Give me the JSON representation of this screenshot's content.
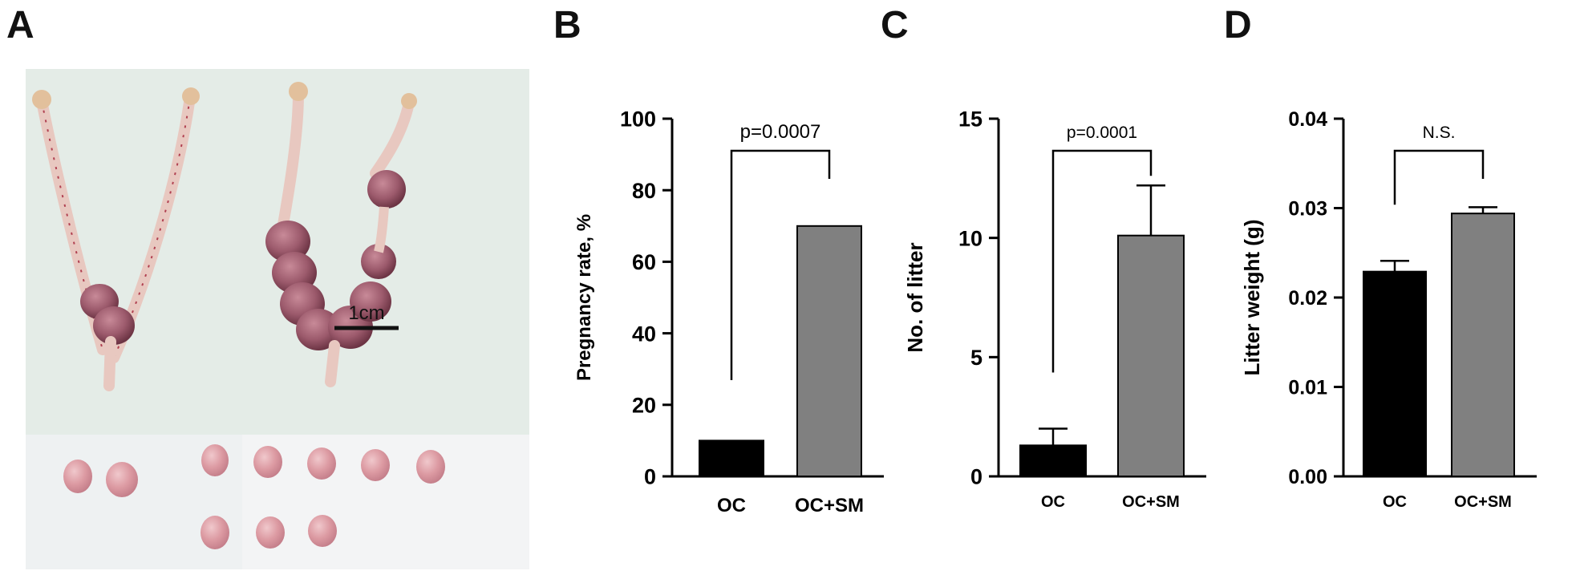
{
  "panels": {
    "a": {
      "letter": "A",
      "scale_bar_label": "1cm"
    },
    "b": {
      "letter": "B"
    },
    "c": {
      "letter": "C"
    },
    "d": {
      "letter": "D"
    }
  },
  "colors": {
    "oc": "#000000",
    "oc_sm": "#808080",
    "photo_bg_top": "#e3ece6",
    "photo_bg_bottom": "#f4f5f6",
    "tissue": "#c8a0a4",
    "tissue_dark": "#7c3c4c"
  },
  "chart_data": [
    {
      "type": "bar",
      "panel": "B",
      "categories": [
        "OC",
        "OC+SM"
      ],
      "values": [
        10,
        70
      ],
      "errors": [
        0,
        0
      ],
      "ylabel": "Pregnancy rate, %",
      "ylim": [
        0,
        100
      ],
      "yticks": [
        "0",
        "20",
        "40",
        "60",
        "80",
        "100"
      ],
      "annotation": "p=0.0007",
      "grid": false
    },
    {
      "type": "bar",
      "panel": "C",
      "categories": [
        "OC",
        "OC+SM"
      ],
      "values": [
        1.3,
        10.1
      ],
      "errors": [
        0.7,
        2.1
      ],
      "ylabel": "No. of litter",
      "ylim": [
        0,
        15
      ],
      "yticks": [
        "0",
        "5",
        "10",
        "15"
      ],
      "annotation": "p=0.0001",
      "grid": false
    },
    {
      "type": "bar",
      "panel": "D",
      "categories": [
        "OC",
        "OC+SM"
      ],
      "values": [
        0.0229,
        0.0294
      ],
      "errors": [
        0.0012,
        0.0007
      ],
      "ylabel": "Litter weight  (g)",
      "ylim": [
        0,
        0.04
      ],
      "yticks": [
        "0.00",
        "0.01",
        "0.02",
        "0.03",
        "0.04"
      ],
      "annotation": "N.S.",
      "grid": false
    }
  ]
}
